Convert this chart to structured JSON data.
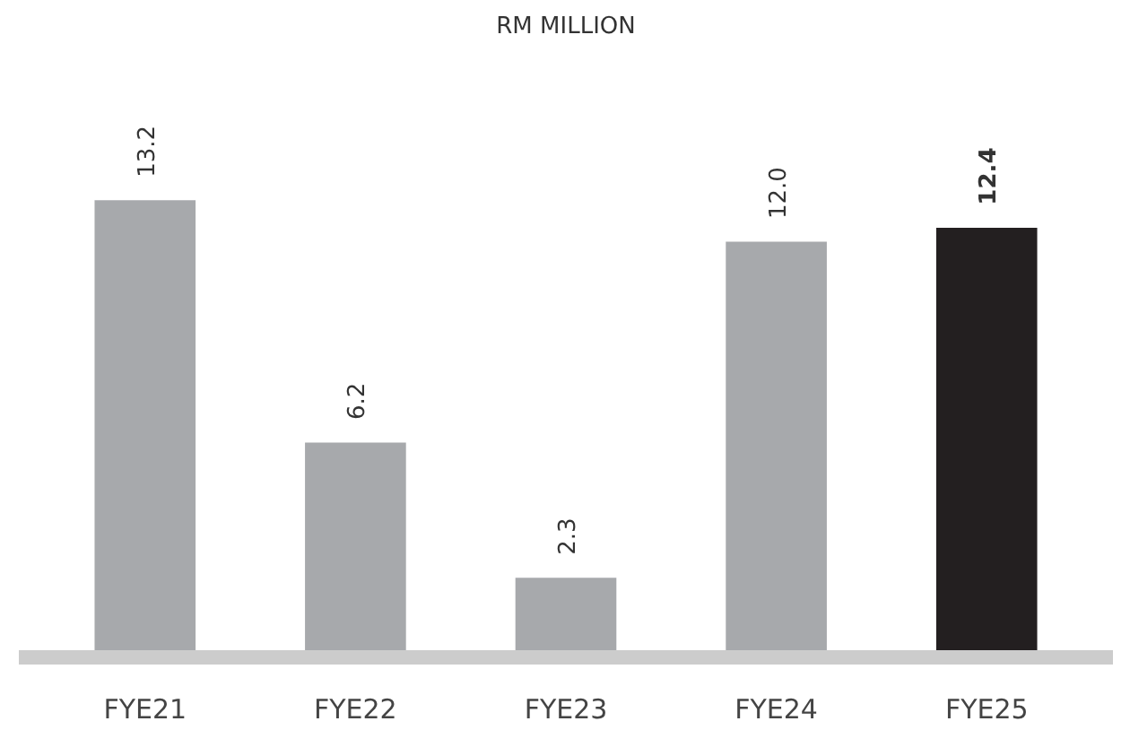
{
  "chart_data": {
    "type": "bar",
    "title": "RM MILLION",
    "categories": [
      "FYE21",
      "FYE22",
      "FYE23",
      "FYE24",
      "FYE25"
    ],
    "values": [
      13.2,
      6.2,
      2.3,
      12.0,
      12.4
    ],
    "colors": [
      "#a7a9ac",
      "#a7a9ac",
      "#a7a9ac",
      "#a7a9ac",
      "#231f20"
    ],
    "value_labels": [
      "13.2",
      "6.2",
      "2.3",
      "12.0",
      "12.4"
    ],
    "grid": false
  }
}
